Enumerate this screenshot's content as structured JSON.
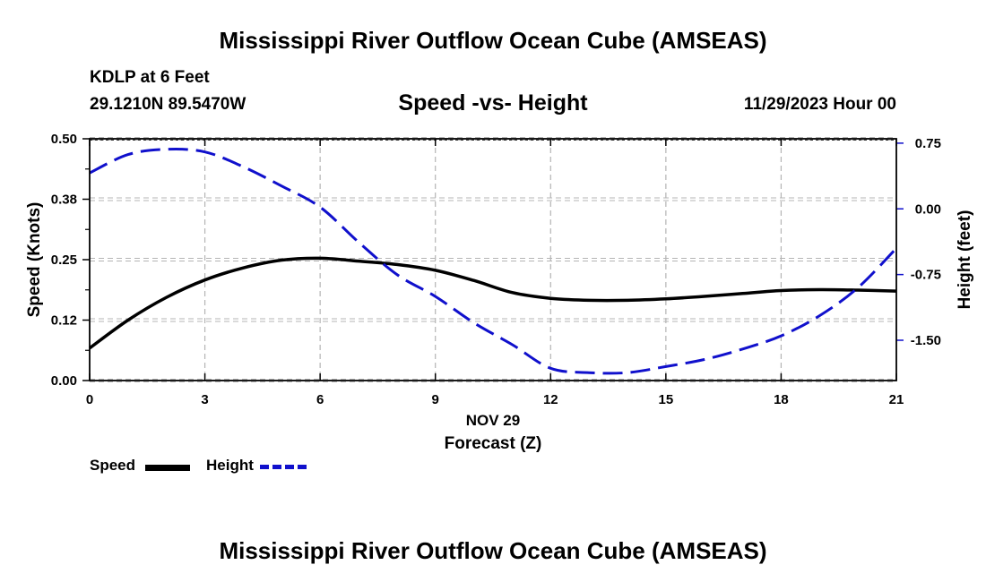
{
  "header": {
    "title": "Mississippi River Outflow Ocean Cube (AMSEAS)",
    "station": "KDLP at 6 Feet",
    "coords": "29.1210N  89.5470W",
    "subtitle": "Speed -vs- Height",
    "datetime": "11/29/2023 Hour 00"
  },
  "footer": {
    "title": "Mississippi River Outflow Ocean Cube (AMSEAS)"
  },
  "legend": {
    "items": [
      {
        "label": "Speed",
        "color": "#000000",
        "style": "solid"
      },
      {
        "label": "Height",
        "color": "#1010cc",
        "style": "dashed"
      }
    ]
  },
  "chart_data": {
    "type": "line",
    "title": "Speed -vs- Height",
    "xlabel": "Forecast (Z)",
    "xlabel_date": "NOV 29",
    "x_ticks": [
      0,
      3,
      6,
      9,
      12,
      15,
      18,
      21
    ],
    "xlim": [
      0,
      21
    ],
    "left_axis": {
      "label": "Speed (Knots)",
      "ylim": [
        0,
        0.5
      ],
      "ticks": [
        0.0,
        0.125,
        0.25,
        0.375,
        0.5
      ],
      "tick_labels": [
        "0.00",
        "0.12",
        "0.25",
        "0.38",
        "0.50"
      ]
    },
    "right_axis": {
      "label": "Height (feet)",
      "ylim": [
        -1.96,
        0.8
      ],
      "ticks": [
        0.75,
        0.0,
        -0.75,
        -1.5
      ],
      "tick_labels": [
        "0.75",
        "0.00",
        "-0.75",
        "-1.50"
      ]
    },
    "grid": true,
    "series": [
      {
        "name": "Speed",
        "axis": "left",
        "color": "#000000",
        "style": "solid",
        "x": [
          0,
          1,
          2,
          3,
          4,
          5,
          6,
          7,
          8,
          9,
          10,
          11,
          12,
          13,
          14,
          15,
          16,
          17,
          18,
          19,
          20,
          21
        ],
        "values": [
          0.067,
          0.125,
          0.172,
          0.208,
          0.233,
          0.249,
          0.253,
          0.247,
          0.24,
          0.228,
          0.207,
          0.182,
          0.17,
          0.166,
          0.166,
          0.169,
          0.174,
          0.18,
          0.186,
          0.188,
          0.187,
          0.185
        ]
      },
      {
        "name": "Height",
        "axis": "right",
        "color": "#1010cc",
        "style": "dashed",
        "x": [
          0,
          1,
          2,
          3,
          4,
          5,
          6,
          7,
          8,
          9,
          10,
          11,
          12,
          13,
          14,
          15,
          16,
          17,
          18,
          19,
          20,
          21
        ],
        "values": [
          0.41,
          0.62,
          0.68,
          0.65,
          0.48,
          0.26,
          0.02,
          -0.38,
          -0.75,
          -1.0,
          -1.3,
          -1.55,
          -1.82,
          -1.87,
          -1.87,
          -1.8,
          -1.72,
          -1.6,
          -1.45,
          -1.22,
          -0.9,
          -0.45
        ]
      }
    ]
  }
}
